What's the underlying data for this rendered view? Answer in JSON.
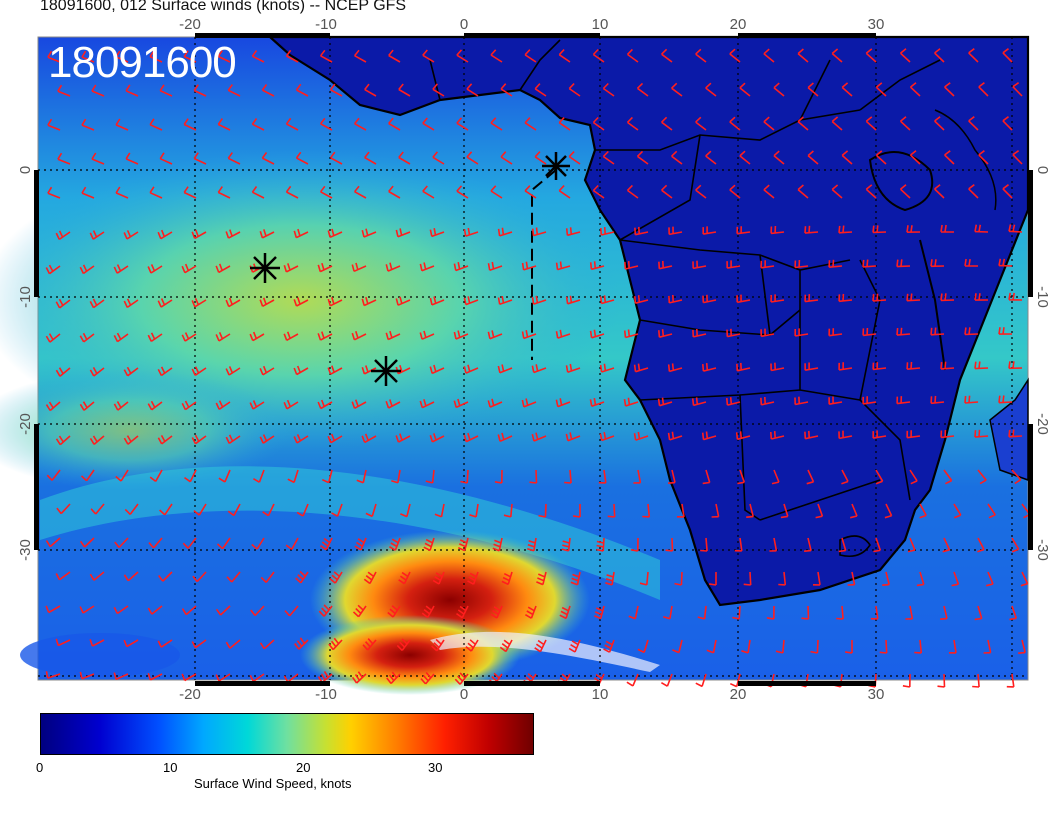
{
  "header": {
    "title": "18091600, 012 Surface winds (knots) -- NCEP GFS",
    "date_label": "18091600"
  },
  "map": {
    "lon_ticks_top": [
      "-20",
      "-10",
      "0",
      "10",
      "20",
      "30"
    ],
    "lon_ticks_bottom": [
      "-20",
      "-10",
      "0",
      "10",
      "20",
      "30"
    ],
    "lat_ticks_left": [
      "0",
      "-10",
      "-20",
      "-30"
    ],
    "lat_ticks_right": [
      "0",
      "-10",
      "-20",
      "-30"
    ],
    "colors": {
      "ocean_low": "#1a3fd6",
      "ocean_mid": "#27c4c8",
      "ocean_high": "#d8d830",
      "jet_core": "#c81818",
      "land": "#0a1a9a",
      "barb": "#ff1e1e",
      "coast": "#000000"
    },
    "markers": [
      {
        "name": "storm-marker-north",
        "lon": 7,
        "lat": 0
      },
      {
        "name": "storm-marker-west",
        "lon": -15,
        "lat": -8
      },
      {
        "name": "storm-marker-central",
        "lon": -6,
        "lat": -16
      }
    ]
  },
  "colorbar": {
    "ticks": [
      "0",
      "10",
      "20",
      "30"
    ],
    "label": "Surface Wind Speed, knots",
    "min": 0,
    "max": 37
  }
}
